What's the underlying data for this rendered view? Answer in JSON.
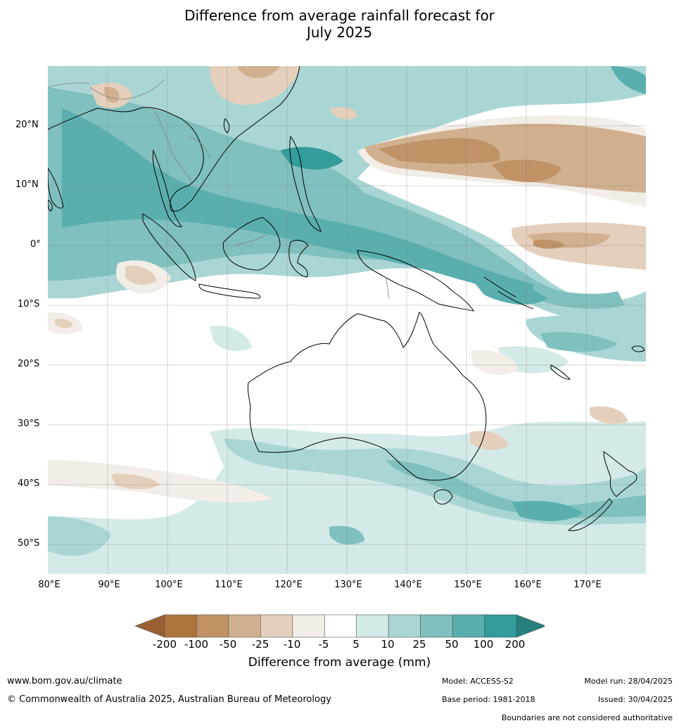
{
  "title_line1": "Difference from average rainfall forecast for",
  "title_line2": "July 2025",
  "map": {
    "lon_range": [
      80,
      180
    ],
    "lat_range": [
      -55,
      30
    ],
    "grid": true,
    "lat_ticks": [
      "20°N",
      "10°N",
      "0°",
      "10°S",
      "20°S",
      "30°S",
      "40°S",
      "50°S"
    ],
    "lon_ticks": [
      "80°E",
      "90°E",
      "100°E",
      "110°E",
      "120°E",
      "130°E",
      "140°E",
      "150°E",
      "160°E",
      "170°E"
    ]
  },
  "legend": {
    "title": "Difference from average (mm)",
    "labels": [
      "-200",
      "-100",
      "-50",
      "-25",
      "-10",
      "-5",
      "5",
      "10",
      "25",
      "50",
      "100",
      "200"
    ],
    "colors": [
      "#9a6033",
      "#ad743d",
      "#c09266",
      "#d1b08f",
      "#e4cfbc",
      "#f2ede6",
      "#ffffff",
      "#d3eae8",
      "#a9d6d5",
      "#80c0bf",
      "#5aafae",
      "#329d9b",
      "#27807e"
    ]
  },
  "footer": {
    "website": "www.bom.gov.au/climate",
    "copyright": "© Commonwealth of Australia 2025, Australian Bureau of Meteorology",
    "model": "Model: ACCESS-S2",
    "base_period": "Base period: 1981-2018",
    "model_run": "Model run: 28/04/2025",
    "issued": "Issued: 30/04/2025",
    "disclaimer": "Boundaries are not considered authoritative"
  }
}
